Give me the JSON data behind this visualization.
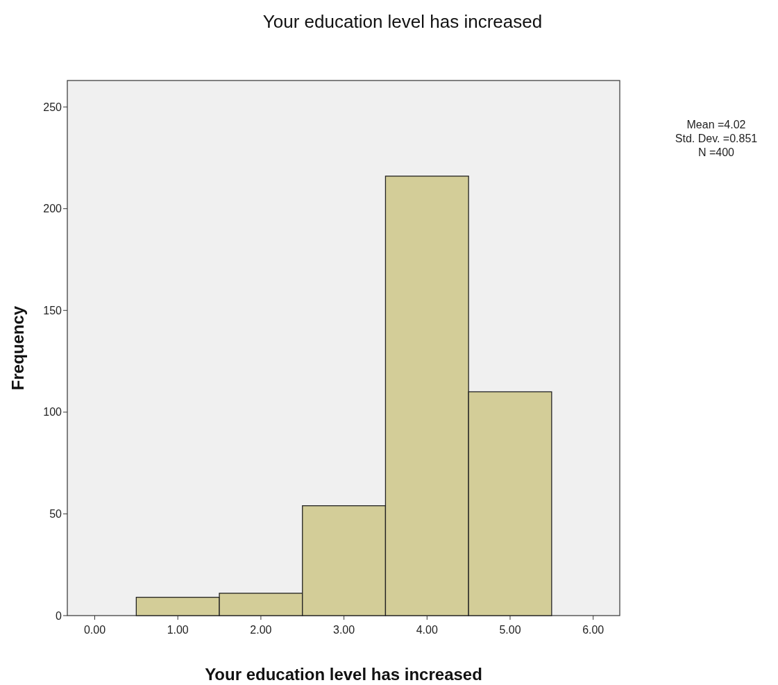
{
  "chart_data": {
    "type": "histogram",
    "title": "Your education level has increased",
    "xlabel": "Your education level has increased",
    "ylabel": "Frequency",
    "bins": [
      0.5,
      1.5,
      2.5,
      3.5,
      4.5,
      5.5
    ],
    "values": [
      9,
      11,
      54,
      216,
      110
    ],
    "color": "#d3cd98",
    "xlim": [
      -0.33,
      6.32
    ],
    "ylim": [
      0,
      263
    ],
    "xticks": [
      {
        "value": 0,
        "label": "0.00"
      },
      {
        "value": 1,
        "label": "1.00"
      },
      {
        "value": 2,
        "label": "2.00"
      },
      {
        "value": 3,
        "label": "3.00"
      },
      {
        "value": 4,
        "label": "4.00"
      },
      {
        "value": 5,
        "label": "5.00"
      },
      {
        "value": 6,
        "label": "6.00"
      }
    ],
    "yticks": [
      0,
      50,
      100,
      150,
      200,
      250
    ],
    "annotations": [
      "Mean =4.02",
      "Std. Dev. =0.851",
      "N =400"
    ]
  }
}
